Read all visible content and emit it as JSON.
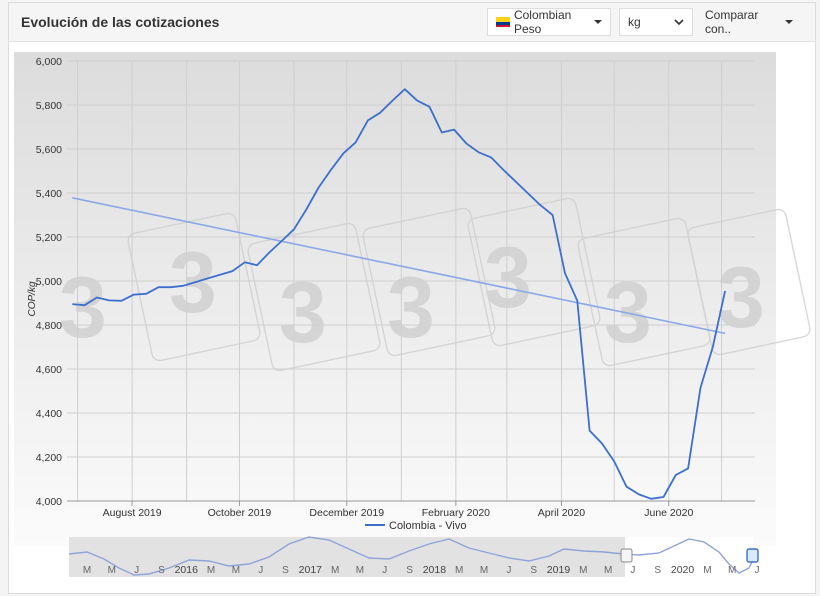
{
  "header": {
    "title": "Evolución de las cotizaciones",
    "currency_label": "Colombian Peso",
    "unit_value": "kg",
    "compare_label": "Comparar con.."
  },
  "colors": {
    "series": "#3c6fce",
    "trend": "#8aa8e8",
    "flag_yellow": "#fcd116",
    "flag_blue": "#003893",
    "flag_red": "#ce1126"
  },
  "chart_data": {
    "type": "line",
    "ylabel": "COP/kg",
    "ylim": [
      4000,
      6000
    ],
    "yticks": [
      4000,
      4200,
      4400,
      4600,
      4800,
      5000,
      5200,
      5400,
      5600,
      5800,
      6000
    ],
    "ytick_labels": [
      "4,000",
      "4,200",
      "4,400",
      "4,600",
      "4,800",
      "5,000",
      "5,200",
      "5,400",
      "5,600",
      "5,800",
      "6,000"
    ],
    "xlim": [
      "2019-06-25",
      "2020-07-20"
    ],
    "xtick_labels": [
      {
        "date": "2019-08-01",
        "label": "August 2019"
      },
      {
        "date": "2019-10-01",
        "label": "October 2019"
      },
      {
        "date": "2019-12-01",
        "label": "December 2019"
      },
      {
        "date": "2020-02-01",
        "label": "February 2020"
      },
      {
        "date": "2020-04-01",
        "label": "April 2020"
      },
      {
        "date": "2020-06-01",
        "label": "June 2020"
      }
    ],
    "grid": true,
    "legend": "bottom",
    "series": [
      {
        "name": "Colombia - Vivo",
        "points": [
          [
            "2019-06-28",
            4895
          ],
          [
            "2019-07-05",
            4890
          ],
          [
            "2019-07-12",
            4925
          ],
          [
            "2019-07-19",
            4912
          ],
          [
            "2019-07-26",
            4910
          ],
          [
            "2019-08-02",
            4938
          ],
          [
            "2019-08-09",
            4942
          ],
          [
            "2019-08-16",
            4972
          ],
          [
            "2019-08-23",
            4972
          ],
          [
            "2019-08-30",
            4978
          ],
          [
            "2019-09-06",
            4995
          ],
          [
            "2019-09-13",
            5012
          ],
          [
            "2019-09-20",
            5028
          ],
          [
            "2019-09-27",
            5045
          ],
          [
            "2019-10-04",
            5085
          ],
          [
            "2019-10-11",
            5072
          ],
          [
            "2019-10-18",
            5130
          ],
          [
            "2019-10-25",
            5182
          ],
          [
            "2019-11-01",
            5235
          ],
          [
            "2019-11-08",
            5325
          ],
          [
            "2019-11-15",
            5425
          ],
          [
            "2019-11-22",
            5505
          ],
          [
            "2019-11-29",
            5580
          ],
          [
            "2019-12-06",
            5630
          ],
          [
            "2019-12-13",
            5730
          ],
          [
            "2019-12-20",
            5765
          ],
          [
            "2019-12-27",
            5820
          ],
          [
            "2020-01-03",
            5872
          ],
          [
            "2020-01-10",
            5820
          ],
          [
            "2020-01-17",
            5792
          ],
          [
            "2020-01-24",
            5675
          ],
          [
            "2020-01-31",
            5688
          ],
          [
            "2020-02-07",
            5625
          ],
          [
            "2020-02-14",
            5585
          ],
          [
            "2020-02-21",
            5562
          ],
          [
            "2020-02-28",
            5505
          ],
          [
            "2020-03-06",
            5452
          ],
          [
            "2020-03-13",
            5398
          ],
          [
            "2020-03-20",
            5345
          ],
          [
            "2020-03-27",
            5300
          ],
          [
            "2020-04-03",
            5035
          ],
          [
            "2020-04-10",
            4910
          ],
          [
            "2020-04-17",
            4320
          ],
          [
            "2020-04-24",
            4262
          ],
          [
            "2020-05-01",
            4180
          ],
          [
            "2020-05-08",
            4065
          ],
          [
            "2020-05-15",
            4030
          ],
          [
            "2020-05-22",
            4010
          ],
          [
            "2020-05-29",
            4018
          ],
          [
            "2020-06-05",
            4118
          ],
          [
            "2020-06-12",
            4148
          ],
          [
            "2020-06-19",
            4515
          ],
          [
            "2020-06-26",
            4700
          ],
          [
            "2020-07-03",
            4955
          ]
        ]
      }
    ],
    "trend": {
      "start": [
        "2019-06-28",
        5378
      ],
      "end": [
        "2020-07-03",
        4762
      ]
    },
    "navigator": {
      "labels": [
        "M",
        "M",
        "J",
        "S",
        "2016",
        "M",
        "M",
        "J",
        "S",
        "2017",
        "M",
        "M",
        "J",
        "S",
        "2018",
        "M",
        "M",
        "J",
        "S",
        "2019",
        "M",
        "M",
        "J",
        "S",
        "2020",
        "M",
        "M",
        "J"
      ]
    }
  }
}
